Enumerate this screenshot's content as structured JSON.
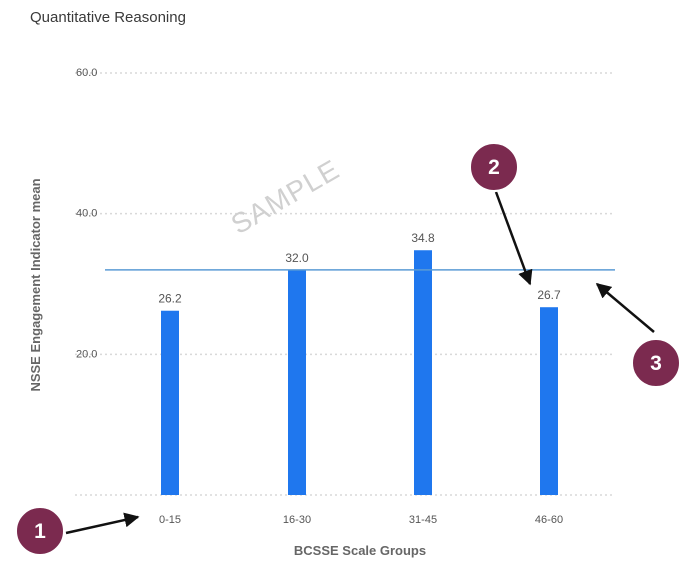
{
  "title": "Quantitative Reasoning",
  "watermark": "SAMPLE",
  "colors": {
    "bar": "#1f77ee",
    "reference_line": "#5b9bd5",
    "gridline": "#d9d9d9",
    "marker": "#7b2a4f",
    "arrow": "#111111"
  },
  "chart_data": {
    "type": "bar",
    "categories": [
      "0-15",
      "16-30",
      "31-45",
      "46-60"
    ],
    "values": [
      26.2,
      32.0,
      34.8,
      26.7
    ],
    "value_labels": [
      "26.2",
      "32.0",
      "34.8",
      "26.7"
    ],
    "xlabel": "BCSSE Scale Groups",
    "ylabel": "NSSE Engagement Indicator mean",
    "ylim": [
      0,
      60
    ],
    "yticks": [
      20,
      40,
      60
    ],
    "ytick_labels": [
      "20.0",
      "40.0",
      "60.0"
    ],
    "reference_line": 32.0,
    "grid": "dotted horizontal",
    "legend": "none"
  },
  "markers": [
    {
      "label": "1",
      "points_to": "x-axis tick labels"
    },
    {
      "label": "2",
      "points_to": "bar value label 26.7"
    },
    {
      "label": "3",
      "points_to": "reference line"
    }
  ]
}
